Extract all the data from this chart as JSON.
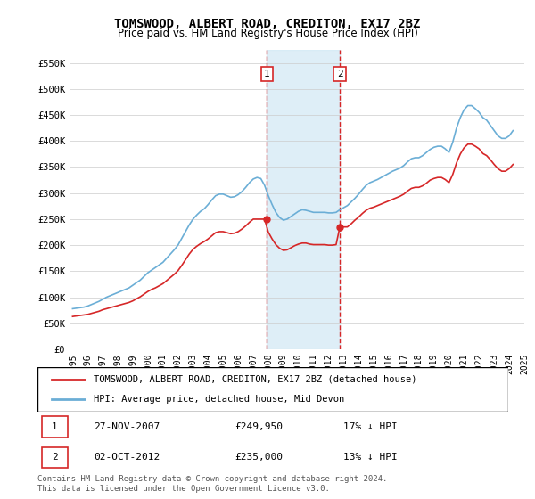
{
  "title": "TOMSWOOD, ALBERT ROAD, CREDITON, EX17 2BZ",
  "subtitle": "Price paid vs. HM Land Registry's House Price Index (HPI)",
  "legend_line1": "TOMSWOOD, ALBERT ROAD, CREDITON, EX17 2BZ (detached house)",
  "legend_line2": "HPI: Average price, detached house, Mid Devon",
  "sale1_date": "27-NOV-2007",
  "sale1_price": 249950,
  "sale1_pct": "17% ↓ HPI",
  "sale2_date": "02-OCT-2012",
  "sale2_price": 235000,
  "sale2_pct": "13% ↓ HPI",
  "footnote": "Contains HM Land Registry data © Crown copyright and database right 2024.\nThis data is licensed under the Open Government Licence v3.0.",
  "hpi_color": "#6baed6",
  "price_color": "#d62728",
  "shading_color": "#d0e8f5",
  "ylim": [
    0,
    575000
  ],
  "yticks": [
    0,
    50000,
    100000,
    150000,
    200000,
    250000,
    300000,
    350000,
    400000,
    450000,
    500000,
    550000
  ],
  "ytick_labels": [
    "£0",
    "£50K",
    "£100K",
    "£150K",
    "£200K",
    "£250K",
    "£300K",
    "£350K",
    "£400K",
    "£450K",
    "£500K",
    "£550K"
  ],
  "sale1_x": 2007.9,
  "sale2_x": 2012.75,
  "hpi_dates": [
    1995.0,
    1995.25,
    1995.5,
    1995.75,
    1996.0,
    1996.25,
    1996.5,
    1996.75,
    1997.0,
    1997.25,
    1997.5,
    1997.75,
    1998.0,
    1998.25,
    1998.5,
    1998.75,
    1999.0,
    1999.25,
    1999.5,
    1999.75,
    2000.0,
    2000.25,
    2000.5,
    2000.75,
    2001.0,
    2001.25,
    2001.5,
    2001.75,
    2002.0,
    2002.25,
    2002.5,
    2002.75,
    2003.0,
    2003.25,
    2003.5,
    2003.75,
    2004.0,
    2004.25,
    2004.5,
    2004.75,
    2005.0,
    2005.25,
    2005.5,
    2005.75,
    2006.0,
    2006.25,
    2006.5,
    2006.75,
    2007.0,
    2007.25,
    2007.5,
    2007.75,
    2008.0,
    2008.25,
    2008.5,
    2008.75,
    2009.0,
    2009.25,
    2009.5,
    2009.75,
    2010.0,
    2010.25,
    2010.5,
    2010.75,
    2011.0,
    2011.25,
    2011.5,
    2011.75,
    2012.0,
    2012.25,
    2012.5,
    2012.75,
    2013.0,
    2013.25,
    2013.5,
    2013.75,
    2014.0,
    2014.25,
    2014.5,
    2014.75,
    2015.0,
    2015.25,
    2015.5,
    2015.75,
    2016.0,
    2016.25,
    2016.5,
    2016.75,
    2017.0,
    2017.25,
    2017.5,
    2017.75,
    2018.0,
    2018.25,
    2018.5,
    2018.75,
    2019.0,
    2019.25,
    2019.5,
    2019.75,
    2020.0,
    2020.25,
    2020.5,
    2020.75,
    2021.0,
    2021.25,
    2021.5,
    2021.75,
    2022.0,
    2022.25,
    2022.5,
    2022.75,
    2023.0,
    2023.25,
    2023.5,
    2023.75,
    2024.0,
    2024.25
  ],
  "hpi_values": [
    78000,
    79000,
    80000,
    81000,
    83000,
    86000,
    89000,
    92000,
    96000,
    100000,
    103000,
    106000,
    109000,
    112000,
    115000,
    118000,
    123000,
    128000,
    133000,
    140000,
    147000,
    152000,
    157000,
    162000,
    167000,
    175000,
    183000,
    191000,
    200000,
    213000,
    226000,
    239000,
    250000,
    258000,
    265000,
    270000,
    278000,
    287000,
    295000,
    298000,
    298000,
    295000,
    292000,
    293000,
    297000,
    303000,
    311000,
    320000,
    327000,
    330000,
    328000,
    315000,
    295000,
    278000,
    263000,
    253000,
    248000,
    250000,
    255000,
    260000,
    265000,
    268000,
    267000,
    265000,
    263000,
    263000,
    263000,
    263000,
    262000,
    262000,
    263000,
    268000,
    272000,
    276000,
    283000,
    290000,
    298000,
    307000,
    315000,
    320000,
    323000,
    326000,
    330000,
    334000,
    338000,
    342000,
    345000,
    348000,
    353000,
    360000,
    366000,
    368000,
    368000,
    372000,
    378000,
    384000,
    388000,
    390000,
    390000,
    385000,
    378000,
    398000,
    425000,
    445000,
    460000,
    468000,
    468000,
    462000,
    455000,
    445000,
    440000,
    430000,
    420000,
    410000,
    405000,
    405000,
    410000,
    420000
  ],
  "price_dates": [
    1995.0,
    1995.25,
    1995.5,
    1995.75,
    1996.0,
    1996.25,
    1996.5,
    1996.75,
    1997.0,
    1997.25,
    1997.5,
    1997.75,
    1998.0,
    1998.25,
    1998.5,
    1998.75,
    1999.0,
    1999.25,
    1999.5,
    1999.75,
    2000.0,
    2000.25,
    2000.5,
    2000.75,
    2001.0,
    2001.25,
    2001.5,
    2001.75,
    2002.0,
    2002.25,
    2002.5,
    2002.75,
    2003.0,
    2003.25,
    2003.5,
    2003.75,
    2004.0,
    2004.25,
    2004.5,
    2004.75,
    2005.0,
    2005.25,
    2005.5,
    2005.75,
    2006.0,
    2006.25,
    2006.5,
    2006.75,
    2007.0,
    2007.25,
    2007.5,
    2007.75,
    2008.0,
    2008.25,
    2008.5,
    2008.75,
    2009.0,
    2009.25,
    2009.5,
    2009.75,
    2010.0,
    2010.25,
    2010.5,
    2010.75,
    2011.0,
    2011.25,
    2011.5,
    2011.75,
    2012.0,
    2012.25,
    2012.5,
    2012.75,
    2013.0,
    2013.25,
    2013.5,
    2013.75,
    2014.0,
    2014.25,
    2014.5,
    2014.75,
    2015.0,
    2015.25,
    2015.5,
    2015.75,
    2016.0,
    2016.25,
    2016.5,
    2016.75,
    2017.0,
    2017.25,
    2017.5,
    2017.75,
    2018.0,
    2018.25,
    2018.5,
    2018.75,
    2019.0,
    2019.25,
    2019.5,
    2019.75,
    2020.0,
    2020.25,
    2020.5,
    2020.75,
    2021.0,
    2021.25,
    2021.5,
    2021.75,
    2022.0,
    2022.25,
    2022.5,
    2022.75,
    2023.0,
    2023.25,
    2023.5,
    2023.75,
    2024.0,
    2024.25
  ],
  "price_values": [
    63000,
    64000,
    65000,
    66000,
    67000,
    69000,
    71000,
    73000,
    76000,
    78000,
    80000,
    82000,
    84000,
    86000,
    88000,
    90000,
    93000,
    97000,
    101000,
    106000,
    111000,
    115000,
    118000,
    122000,
    126000,
    132000,
    138000,
    144000,
    151000,
    161000,
    172000,
    183000,
    192000,
    198000,
    203000,
    207000,
    212000,
    218000,
    224000,
    226000,
    226000,
    224000,
    222000,
    223000,
    226000,
    231000,
    237000,
    244000,
    249950,
    249950,
    249950,
    249950,
    225000,
    212000,
    201000,
    194000,
    190000,
    191000,
    195000,
    199000,
    202000,
    204000,
    204000,
    202000,
    201000,
    201000,
    201000,
    201000,
    200000,
    200000,
    201000,
    235000,
    235000,
    235000,
    241000,
    248000,
    254000,
    261000,
    267000,
    271000,
    273000,
    276000,
    279000,
    282000,
    285000,
    288000,
    291000,
    294000,
    298000,
    304000,
    309000,
    311000,
    311000,
    314000,
    319000,
    325000,
    328000,
    330000,
    330000,
    326000,
    320000,
    336000,
    358000,
    375000,
    387000,
    394000,
    394000,
    390000,
    385000,
    376000,
    372000,
    364000,
    355000,
    347000,
    342000,
    342000,
    347000,
    355000
  ]
}
